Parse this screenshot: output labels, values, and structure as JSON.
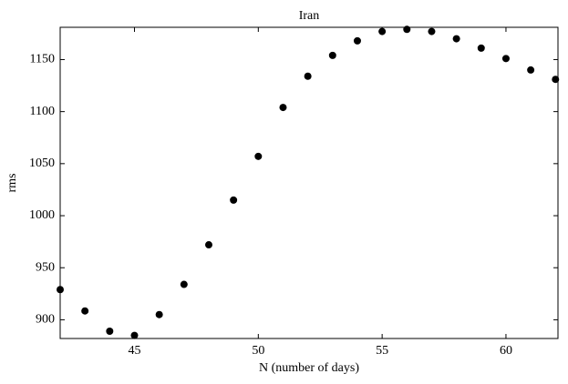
{
  "chart_data": {
    "type": "scatter",
    "title": "Iran",
    "xlabel": "N (number of days)",
    "ylabel": "rms",
    "x": [
      42,
      43,
      44,
      45,
      46,
      47,
      48,
      49,
      50,
      51,
      52,
      53,
      54,
      55,
      56,
      57,
      58,
      59,
      60,
      61,
      62
    ],
    "series": [
      {
        "color": "#000000",
        "values": [
          929,
          908.5,
          889,
          885,
          905,
          934,
          972,
          1015,
          1057,
          1104,
          1134,
          1154,
          1168,
          1177,
          1179,
          1177,
          1170,
          1161,
          1151,
          1140,
          1131
        ]
      }
    ],
    "xlim": [
      42,
      62.1
    ],
    "ylim": [
      882,
      1181
    ],
    "xticks": [
      45,
      50,
      55,
      60
    ],
    "yticks": [
      900,
      950,
      1000,
      1050,
      1100,
      1150
    ]
  }
}
